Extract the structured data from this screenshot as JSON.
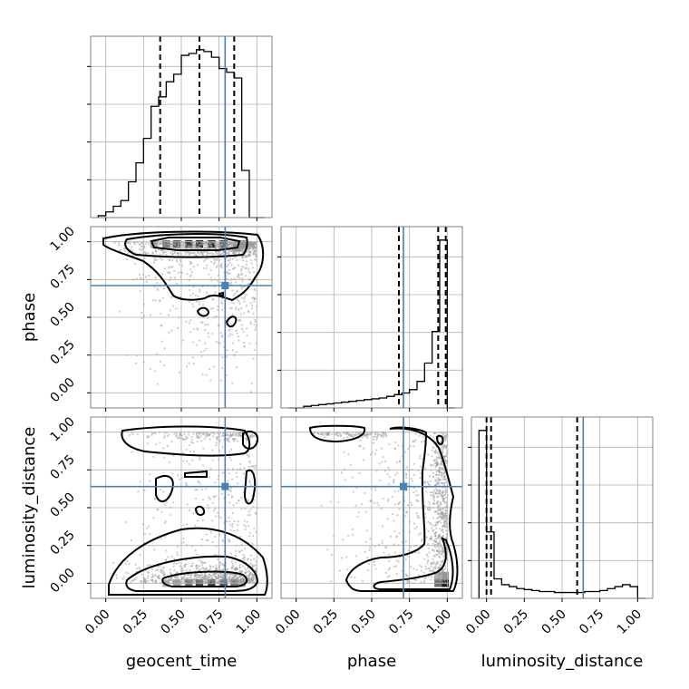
{
  "chart_data": {
    "type": "corner",
    "parameters": [
      "geocent_time",
      "phase",
      "luminosity_distance"
    ],
    "tick_labels": [
      "0.00",
      "0.25",
      "0.50",
      "0.75",
      "1.00"
    ],
    "tick_values": [
      0,
      0.25,
      0.5,
      0.75,
      1.0
    ],
    "axis_range": [
      -0.1,
      1.1
    ],
    "grid": true,
    "colors": {
      "truth": "#4682b4",
      "line": "#000000",
      "grid": "#b0b0b0",
      "scatter": "#9a9a9a"
    },
    "truths": {
      "geocent_time": 0.79,
      "phase": 0.71,
      "luminosity_distance": 0.64
    },
    "quantiles": {
      "geocent_time": [
        0.36,
        0.62,
        0.85
      ],
      "phase": [
        0.68,
        0.94,
        0.99
      ],
      "luminosity_distance": [
        0.0,
        0.03,
        0.6
      ]
    },
    "histograms": {
      "geocent_time": {
        "bin_edges": [
          -0.05,
          0.0,
          0.05,
          0.1,
          0.15,
          0.2,
          0.25,
          0.3,
          0.35,
          0.4,
          0.45,
          0.5,
          0.55,
          0.6,
          0.65,
          0.7,
          0.75,
          0.8,
          0.85,
          0.9,
          0.95,
          1.0,
          1.05
        ],
        "counts": [
          1,
          3,
          6,
          9,
          19,
          29,
          42,
          59,
          64,
          72,
          76,
          86,
          87,
          89,
          88,
          85,
          79,
          77,
          74,
          25,
          0,
          0
        ]
      },
      "phase": {
        "bin_edges": [
          -0.05,
          0.0,
          0.05,
          0.1,
          0.15,
          0.2,
          0.25,
          0.3,
          0.35,
          0.4,
          0.45,
          0.5,
          0.55,
          0.6,
          0.65,
          0.7,
          0.75,
          0.8,
          0.85,
          0.9,
          0.95,
          1.0,
          1.05
        ],
        "counts": [
          0,
          0,
          1,
          1.5,
          2,
          2.5,
          3,
          3.5,
          4,
          4.5,
          5,
          5.5,
          6,
          7,
          8,
          9,
          11,
          16,
          27,
          46,
          101,
          0
        ]
      },
      "luminosity_distance": {
        "bin_edges": [
          -0.05,
          0.0,
          0.05,
          0.1,
          0.15,
          0.2,
          0.25,
          0.3,
          0.35,
          0.4,
          0.45,
          0.5,
          0.55,
          0.6,
          0.65,
          0.7,
          0.75,
          0.8,
          0.85,
          0.9,
          0.95,
          1.0,
          1.05
        ],
        "counts": [
          86,
          34,
          10,
          7,
          6,
          5,
          4.5,
          4,
          3.5,
          3.5,
          3,
          3,
          3,
          3,
          3.5,
          3.5,
          4,
          5,
          6,
          7,
          6,
          0
        ]
      }
    },
    "density_2d": {
      "geocent_time_vs_phase": {
        "x": "geocent_time",
        "y": "phase",
        "cells": [
          [
            0.55,
            0.985,
            0.85
          ],
          [
            0.62,
            0.985,
            1.0
          ],
          [
            0.7,
            0.985,
            1.0
          ],
          [
            0.47,
            0.985,
            0.7
          ],
          [
            0.4,
            0.985,
            0.55
          ],
          [
            0.78,
            0.985,
            0.8
          ],
          [
            0.32,
            0.985,
            0.3
          ],
          [
            0.9,
            0.985,
            0.45
          ],
          [
            0.87,
            0.96,
            0.4
          ]
        ]
      },
      "geocent_time_vs_luminosity_distance": {
        "x": "geocent_time",
        "y": "luminosity_distance",
        "cells": [
          [
            0.55,
            0.0,
            0.6
          ],
          [
            0.62,
            0.0,
            0.8
          ],
          [
            0.7,
            0.0,
            0.85
          ],
          [
            0.78,
            0.0,
            0.75
          ],
          [
            0.85,
            0.0,
            0.55
          ],
          [
            0.4,
            0.0,
            0.25
          ],
          [
            0.47,
            0.0,
            0.35
          ],
          [
            0.9,
            0.0,
            0.3
          ]
        ]
      },
      "phase_vs_luminosity_distance": {
        "x": "phase",
        "y": "luminosity_distance",
        "cells": [
          [
            0.985,
            0.0,
            1.0
          ],
          [
            0.94,
            0.0,
            0.6
          ],
          [
            0.985,
            0.05,
            0.4
          ],
          [
            0.94,
            0.05,
            0.25
          ]
        ]
      }
    }
  }
}
